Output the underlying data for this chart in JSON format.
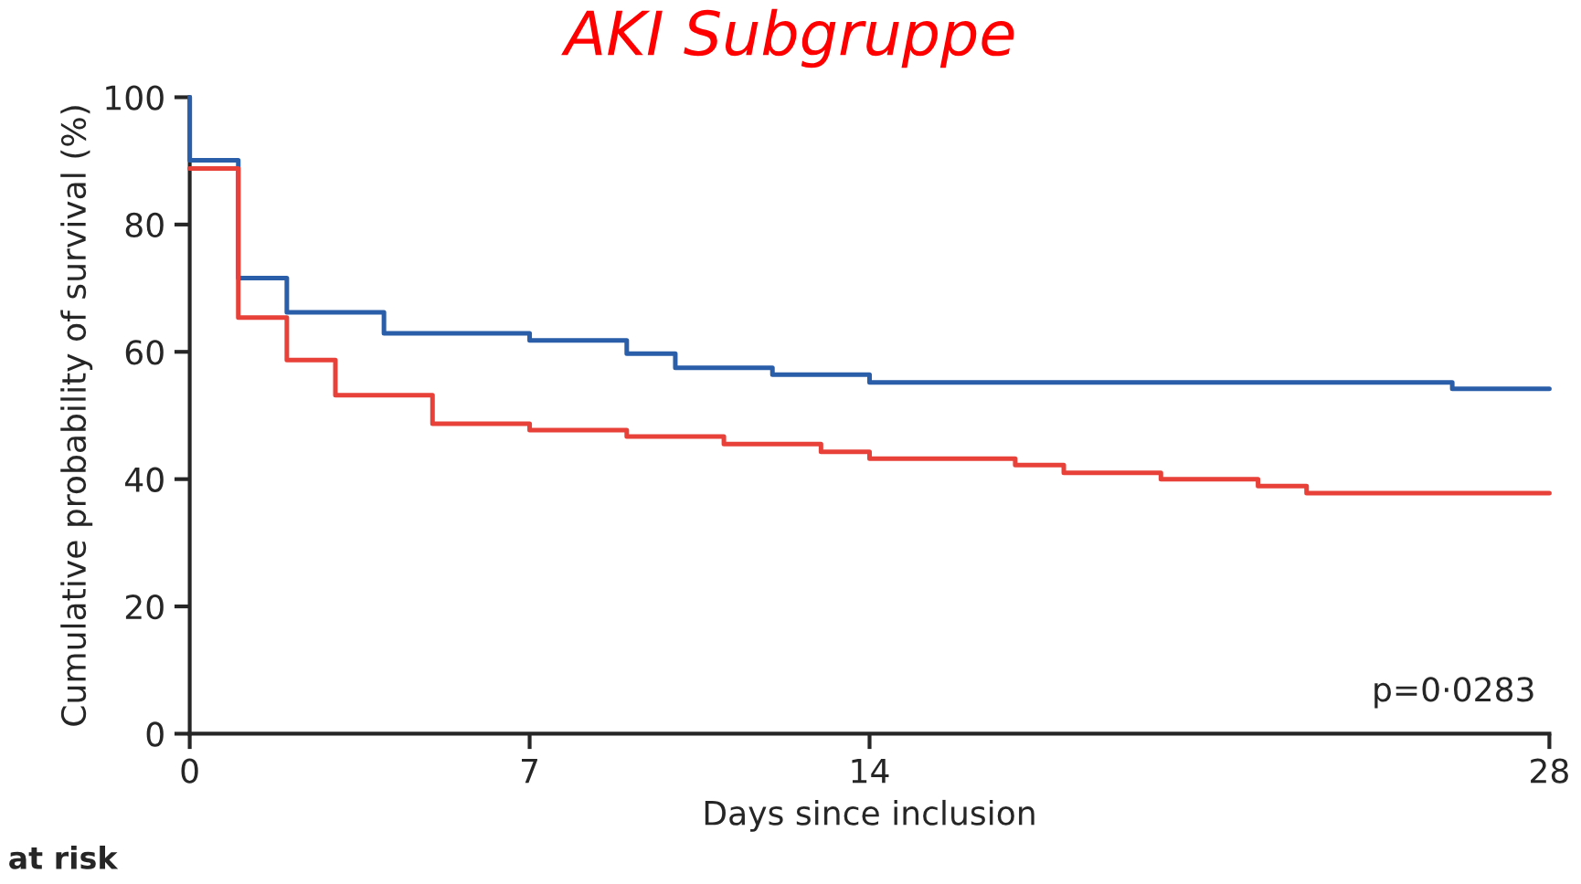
{
  "chart_data": {
    "type": "step",
    "title": "AKI Subgruppe",
    "xlabel": "Days since inclusion",
    "ylabel": "Cumulative probability of survival (%)",
    "xlim": [
      0,
      28
    ],
    "xticks": [
      0,
      7,
      14,
      28
    ],
    "ylim": [
      0,
      100
    ],
    "yticks": [
      0,
      20,
      40,
      60,
      80,
      100
    ],
    "series": [
      {
        "color": "#2a5ea8",
        "x": [
          0,
          0.001,
          1,
          2,
          4,
          7,
          9,
          10,
          12,
          14,
          26,
          28
        ],
        "values": [
          100,
          90.1,
          71.6,
          66.2,
          62.9,
          61.8,
          59.7,
          57.5,
          56.4,
          55.2,
          54.2,
          54.2
        ]
      },
      {
        "color": "#e8413a",
        "x": [
          0,
          1,
          2,
          3,
          5,
          7,
          9,
          11,
          13,
          14,
          17,
          18,
          20,
          22,
          23,
          28
        ],
        "values": [
          88.8,
          65.4,
          58.7,
          53.2,
          48.7,
          47.7,
          46.7,
          45.5,
          44.3,
          43.2,
          42.2,
          41.0,
          40.0,
          38.9,
          37.8,
          37.8
        ]
      }
    ],
    "annotations": [
      "p=0·0283",
      "at risk"
    ],
    "grid": false,
    "legend": false
  }
}
